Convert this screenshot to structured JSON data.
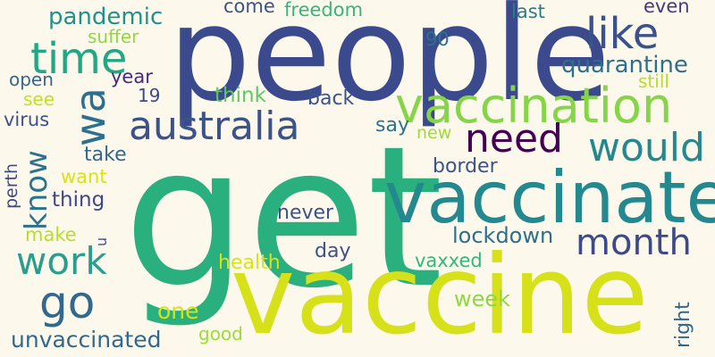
{
  "colors": {
    "background": "#fdf8ec",
    "palette": [
      "#3b4a8c",
      "#2ab07f",
      "#dde318",
      "#23898e",
      "#440154",
      "#9fd938",
      "#414487",
      "#2d708e",
      "#6ccd5a",
      "#1f9e89"
    ]
  },
  "words": [
    {
      "text": "get",
      "color": "#2ab07f"
    },
    {
      "text": "people",
      "color": "#3b4a8c"
    },
    {
      "text": "vaccine",
      "color": "#d6e11a"
    },
    {
      "text": "vaccinate",
      "color": "#23898e"
    },
    {
      "text": "vaccination",
      "color": "#86d549"
    },
    {
      "text": "australia",
      "color": "#3b528b"
    },
    {
      "text": "need",
      "color": "#440154"
    },
    {
      "text": "would",
      "color": "#23898e"
    },
    {
      "text": "time",
      "color": "#22a784"
    },
    {
      "text": "like",
      "color": "#3b528b"
    },
    {
      "text": "wa",
      "color": "#2d708e"
    },
    {
      "text": "go",
      "color": "#31688e"
    },
    {
      "text": "month",
      "color": "#3e4989"
    },
    {
      "text": "work",
      "color": "#2a9d8f"
    },
    {
      "text": "know",
      "color": "#2c728e"
    },
    {
      "text": "pandemic",
      "color": "#21918c"
    },
    {
      "text": "quarantine",
      "color": "#2d708e"
    },
    {
      "text": "come",
      "color": "#3b528b"
    },
    {
      "text": "freedom",
      "color": "#35b779"
    },
    {
      "text": "last",
      "color": "#287c8e"
    },
    {
      "text": "even",
      "color": "#443983"
    },
    {
      "text": "suffer",
      "color": "#90d743"
    },
    {
      "text": "90",
      "color": "#2c728e"
    },
    {
      "text": "year",
      "color": "#482878"
    },
    {
      "text": "open",
      "color": "#31688e"
    },
    {
      "text": "19",
      "color": "#3e4989"
    },
    {
      "text": "still",
      "color": "#b5de2b"
    },
    {
      "text": "see",
      "color": "#c2df23"
    },
    {
      "text": "think",
      "color": "#5ec962"
    },
    {
      "text": "back",
      "color": "#3b528b"
    },
    {
      "text": "virus",
      "color": "#3b528b"
    },
    {
      "text": "say",
      "color": "#2c728e"
    },
    {
      "text": "new",
      "color": "#a0da39"
    },
    {
      "text": "take",
      "color": "#31688e"
    },
    {
      "text": "want",
      "color": "#d8e219"
    },
    {
      "text": "thing",
      "color": "#3e4989"
    },
    {
      "text": "border",
      "color": "#3b528b"
    },
    {
      "text": "perth",
      "color": "#3e4989"
    },
    {
      "text": "never",
      "color": "#3b528b"
    },
    {
      "text": "make",
      "color": "#b5de2b"
    },
    {
      "text": "u",
      "color": "#3e4989"
    },
    {
      "text": "lockdown",
      "color": "#2d708e"
    },
    {
      "text": "day",
      "color": "#3b528b"
    },
    {
      "text": "health",
      "color": "#d8e219"
    },
    {
      "text": "vaxxed",
      "color": "#35b779"
    },
    {
      "text": "week",
      "color": "#90d743"
    },
    {
      "text": "one",
      "color": "#d8e219"
    },
    {
      "text": "right",
      "color": "#31688e"
    },
    {
      "text": "unvaccinated",
      "color": "#31688e"
    },
    {
      "text": "good",
      "color": "#a0da39"
    }
  ]
}
